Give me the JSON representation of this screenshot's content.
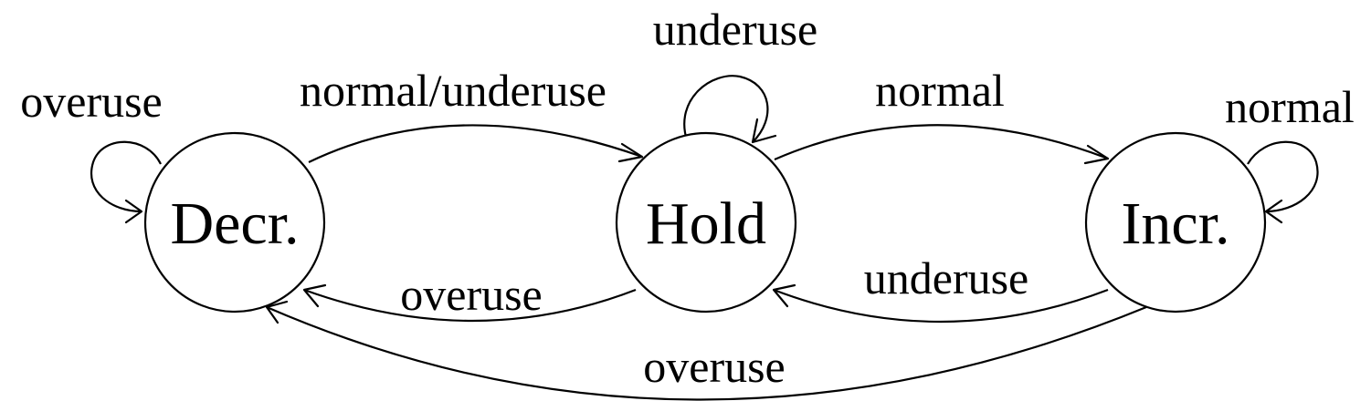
{
  "states": {
    "decrease": {
      "label": "Decr."
    },
    "hold": {
      "label": "Hold"
    },
    "increase": {
      "label": "Incr."
    }
  },
  "transitions": {
    "decrease_self": {
      "label": "overuse"
    },
    "decrease_to_hold": {
      "label": "normal/underuse"
    },
    "hold_self": {
      "label": "underuse"
    },
    "hold_to_increase": {
      "label": "normal"
    },
    "increase_self": {
      "label": "normal"
    },
    "hold_to_decrease": {
      "label": "overuse"
    },
    "increase_to_hold": {
      "label": "underuse"
    },
    "increase_to_decrease": {
      "label": "overuse"
    }
  },
  "colors": {
    "stroke": "#000000",
    "background": "#ffffff"
  }
}
